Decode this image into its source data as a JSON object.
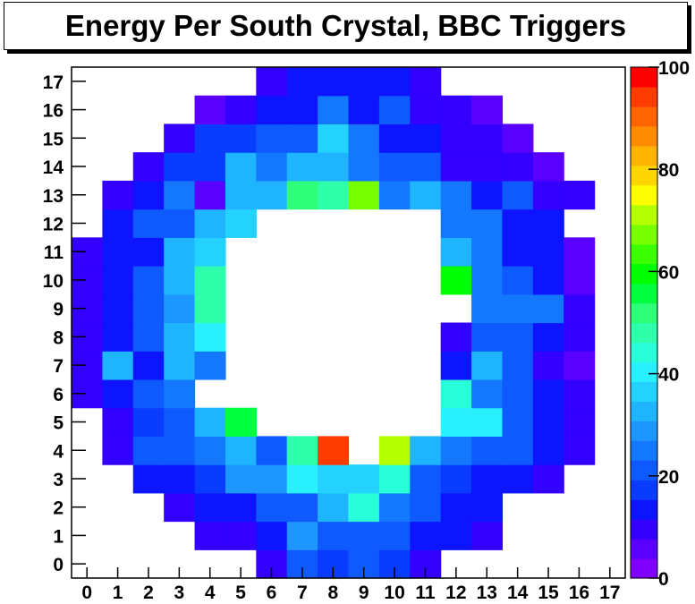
{
  "title": "Energy Per South Crystal, BBC Triggers",
  "chart_data": {
    "type": "heatmap",
    "title": "Energy Per South Crystal, BBC Triggers",
    "xlabel": "",
    "ylabel": "",
    "x_ticks": [
      "0",
      "1",
      "2",
      "3",
      "4",
      "5",
      "6",
      "7",
      "8",
      "9",
      "10",
      "11",
      "12",
      "13",
      "14",
      "15",
      "16",
      "17"
    ],
    "y_ticks": [
      "0",
      "1",
      "2",
      "3",
      "4",
      "5",
      "6",
      "7",
      "8",
      "9",
      "10",
      "11",
      "12",
      "13",
      "14",
      "15",
      "16",
      "17"
    ],
    "xlim": [
      -0.5,
      17.5
    ],
    "ylim": [
      -0.5,
      17.5
    ],
    "zlim": [
      0,
      100
    ],
    "colorbar_ticks": [
      "0",
      "20",
      "40",
      "60",
      "80",
      "100"
    ],
    "palette": [
      "#7f00ff",
      "#5a00ff",
      "#3300ff",
      "#0d14ff",
      "#0a3cff",
      "#0f5aff",
      "#1478ff",
      "#1e96ff",
      "#1fb4ff",
      "#23d2ff",
      "#28f0ff",
      "#28ffd8",
      "#2dffaa",
      "#2dff78",
      "#00ff3c",
      "#00ff00",
      "#3cff00",
      "#78ff00",
      "#b4ff00",
      "#ffff00",
      "#ffd700",
      "#ffb400",
      "#ff8c00",
      "#ff6400",
      "#ff3c00",
      "#ff0000"
    ],
    "grid": false,
    "legend": "colorbar-right",
    "z": [
      [
        null,
        null,
        null,
        null,
        null,
        null,
        10,
        20,
        16,
        23,
        17,
        10,
        null,
        null,
        null,
        null,
        null,
        null
      ],
      [
        null,
        null,
        null,
        null,
        8,
        8,
        13,
        28,
        23,
        23,
        20,
        14,
        14,
        8,
        null,
        null,
        null,
        null
      ],
      [
        null,
        null,
        null,
        8,
        13,
        13,
        22,
        22,
        34,
        44,
        24,
        20,
        15,
        15,
        null,
        null,
        null,
        null
      ],
      [
        null,
        null,
        15,
        15,
        19,
        29,
        27,
        39,
        38,
        38,
        45,
        23,
        18,
        15,
        15,
        10,
        null,
        null
      ],
      [
        null,
        8,
        20,
        20,
        25,
        33,
        22,
        47,
        96,
        null,
        70,
        33,
        25,
        20,
        20,
        12,
        8,
        null
      ],
      [
        null,
        8,
        16,
        20,
        33,
        57,
        null,
        null,
        null,
        null,
        null,
        null,
        39,
        39,
        22,
        12,
        8,
        null
      ],
      [
        8,
        12,
        20,
        24,
        null,
        null,
        null,
        null,
        null,
        null,
        null,
        null,
        46,
        24,
        20,
        14,
        10,
        null
      ],
      [
        8,
        33,
        14,
        33,
        25,
        null,
        null,
        null,
        null,
        null,
        null,
        null,
        14,
        33,
        20,
        10,
        5,
        null
      ],
      [
        8,
        12,
        20,
        33,
        40,
        null,
        null,
        null,
        null,
        null,
        null,
        null,
        8,
        20,
        20,
        14,
        10,
        null
      ],
      [
        8,
        12,
        20,
        27,
        47,
        null,
        null,
        null,
        null,
        null,
        null,
        null,
        null,
        25,
        25,
        25,
        10,
        null
      ],
      [
        8,
        12,
        20,
        33,
        47,
        null,
        null,
        null,
        null,
        null,
        null,
        null,
        60,
        25,
        20,
        12,
        6,
        null
      ],
      [
        8,
        12,
        12,
        33,
        38,
        null,
        null,
        null,
        null,
        null,
        null,
        null,
        33,
        25,
        12,
        12,
        6,
        null
      ],
      [
        null,
        12,
        20,
        20,
        33,
        38,
        null,
        null,
        null,
        null,
        null,
        null,
        25,
        25,
        12,
        12,
        null,
        null
      ],
      [
        null,
        8,
        12,
        25,
        6,
        33,
        33,
        52,
        48,
        69,
        25,
        33,
        25,
        12,
        20,
        8,
        8,
        null
      ],
      [
        null,
        null,
        8,
        16,
        16,
        33,
        25,
        33,
        33,
        25,
        20,
        20,
        8,
        8,
        8,
        5,
        null,
        null
      ],
      [
        null,
        null,
        null,
        8,
        16,
        16,
        22,
        22,
        36,
        25,
        14,
        14,
        8,
        8,
        5,
        null,
        null,
        null
      ],
      [
        null,
        null,
        null,
        null,
        5,
        8,
        14,
        14,
        25,
        14,
        20,
        8,
        8,
        5,
        null,
        null,
        null,
        null
      ],
      [
        null,
        null,
        null,
        null,
        null,
        null,
        10,
        12,
        12,
        12,
        12,
        10,
        null,
        null,
        null,
        null,
        null,
        null
      ]
    ]
  }
}
